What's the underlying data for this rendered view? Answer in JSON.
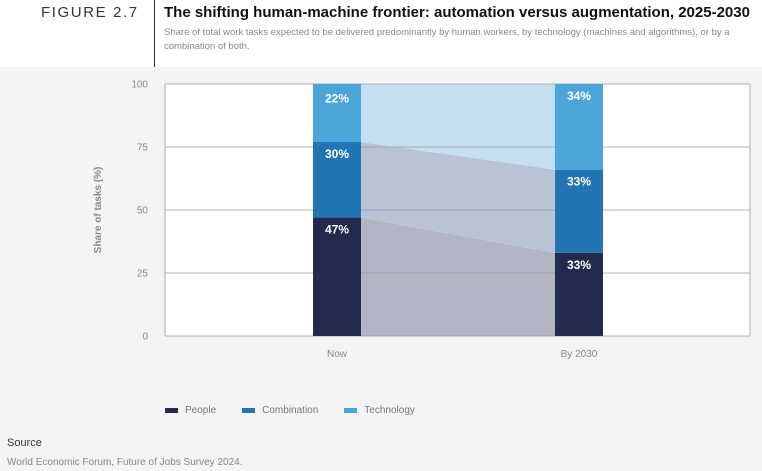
{
  "header": {
    "figure_label": "FIGURE 2.7",
    "title": "The shifting human-machine frontier: automation versus augmentation, 2025-2030",
    "subtitle": "Share of total work tasks expected to be delivered predominantly by human workers, by technology (machines and algorithms), or by a combination of both."
  },
  "colors": {
    "people": "#232a4e",
    "combination": "#2374b2",
    "technology": "#4ba5d9",
    "people_area": "#b4b5c4",
    "combination_area": "#b8c4d6",
    "technology_area": "#c4dff0"
  },
  "chart_data": {
    "type": "bar",
    "stacked": true,
    "categories": [
      "Now",
      "By 2030"
    ],
    "series": [
      {
        "name": "People",
        "values": [
          47,
          33
        ],
        "labels": [
          "47%",
          "33%"
        ]
      },
      {
        "name": "Combination",
        "values": [
          30,
          33
        ],
        "labels": [
          "30%",
          "33%"
        ]
      },
      {
        "name": "Technology",
        "values": [
          22,
          34
        ],
        "labels": [
          "22%",
          "34%"
        ]
      }
    ],
    "ylabel": "Share of tasks (%)",
    "ylim": [
      0,
      100
    ],
    "yticks": [
      100,
      75,
      50,
      25,
      0
    ],
    "ytick_labels": [
      "100",
      "75",
      "50",
      "25",
      "0"
    ],
    "grid": true,
    "legend_position": "bottom-left"
  },
  "legend": {
    "items": [
      "People",
      "Combination",
      "Technology"
    ]
  },
  "source": {
    "label": "Source",
    "text": "World Economic Forum, Future of Jobs Survey 2024."
  }
}
